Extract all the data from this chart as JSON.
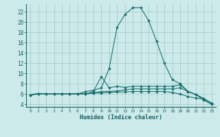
{
  "xlabel": "Humidex (Indice chaleur)",
  "bg_color": "#cceaea",
  "grid_color": "#aacccc",
  "line_color": "#1a7070",
  "xlim": [
    -0.5,
    23.5
  ],
  "ylim": [
    3.5,
    23.5
  ],
  "yticks": [
    4,
    6,
    8,
    10,
    12,
    14,
    16,
    18,
    20,
    22
  ],
  "xticks": [
    0,
    1,
    2,
    3,
    4,
    5,
    6,
    7,
    8,
    9,
    10,
    11,
    12,
    13,
    14,
    15,
    16,
    17,
    18,
    19,
    20,
    21,
    22,
    23
  ],
  "series": [
    [
      5.8,
      6.0,
      6.0,
      6.0,
      6.0,
      6.0,
      6.0,
      6.5,
      6.7,
      7.2,
      11.0,
      19.0,
      21.5,
      22.8,
      22.8,
      20.3,
      16.3,
      12.0,
      8.8,
      8.0,
      6.5,
      5.9,
      4.8,
      4.0
    ],
    [
      5.8,
      6.1,
      6.0,
      6.0,
      6.0,
      6.0,
      6.1,
      6.0,
      6.5,
      9.4,
      7.2,
      7.5,
      7.3,
      7.5,
      7.5,
      7.5,
      7.5,
      7.5,
      7.5,
      7.8,
      6.5,
      5.9,
      5.1,
      4.2
    ],
    [
      5.8,
      6.1,
      6.0,
      6.0,
      6.0,
      6.0,
      6.1,
      6.0,
      6.2,
      6.5,
      6.5,
      6.6,
      6.8,
      7.0,
      7.0,
      7.0,
      7.0,
      7.0,
      7.0,
      7.2,
      6.5,
      5.9,
      5.1,
      4.2
    ],
    [
      5.8,
      6.1,
      6.0,
      6.0,
      6.0,
      6.0,
      6.1,
      6.0,
      6.2,
      6.2,
      6.3,
      6.4,
      6.4,
      6.5,
      6.5,
      6.5,
      6.5,
      6.5,
      6.3,
      6.0,
      5.5,
      5.2,
      5.0,
      4.2
    ]
  ]
}
